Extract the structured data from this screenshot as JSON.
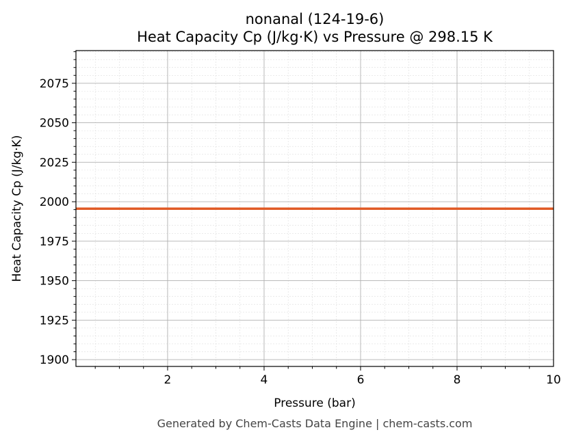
{
  "chart_data": {
    "type": "line",
    "title": "nonanal (124-19-6)",
    "subtitle": "Heat Capacity Cp (J/kg·K) vs Pressure @ 298.15 K",
    "xlabel": "Pressure (bar)",
    "ylabel": "Heat Capacity Cp (J/kg·K)",
    "xlim": [
      0.1,
      10
    ],
    "ylim": [
      1895.7,
      2095.7
    ],
    "xticks": [
      2,
      4,
      6,
      8,
      10
    ],
    "yticks": [
      1900,
      1925,
      1950,
      1975,
      2000,
      2025,
      2050,
      2075
    ],
    "grid": true,
    "series": [
      {
        "x": [
          0.1,
          10
        ],
        "y": [
          1995.6,
          1995.6
        ],
        "color": "#e05a26"
      }
    ]
  },
  "footer": "Generated by Chem-Casts Data Engine | chem-casts.com"
}
